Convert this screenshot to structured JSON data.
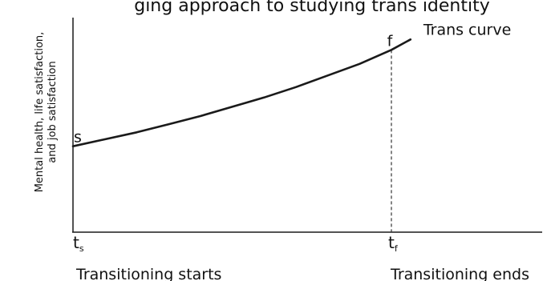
{
  "chart_data": {
    "type": "line",
    "title": "ging approach to studying trans identity",
    "xlabel": "",
    "ylabel": "Mental health, life satisfaction, and job satisfaction",
    "ylabel_lines": [
      "Mental health, life satisfaction,",
      "and job satisfaction"
    ],
    "grid": false,
    "legend": "none",
    "series": [
      {
        "name": "Trans curve",
        "x": [
          0,
          0.1,
          0.2,
          0.3,
          0.4,
          0.5,
          0.6,
          0.7,
          0.8,
          0.9,
          1.0,
          1.06
        ],
        "values": [
          0.37,
          0.4,
          0.43,
          0.465,
          0.5,
          0.54,
          0.58,
          0.625,
          0.675,
          0.725,
          0.785,
          0.83
        ]
      }
    ],
    "points": [
      {
        "label": "s",
        "x": 0,
        "y": 0.37
      },
      {
        "label": "f",
        "x": 1.0,
        "y": 0.785
      }
    ],
    "x_ticks": [
      {
        "main": "t",
        "sub": "s",
        "x": 0
      },
      {
        "main": "t",
        "sub": "f",
        "x": 1.0
      }
    ],
    "x_captions": [
      {
        "text": "Transitioning starts",
        "x": 0
      },
      {
        "text": "Transitioning ends",
        "x": 1.0
      }
    ],
    "colors": {
      "line": "#1a1a1a",
      "axis": "#1a1a1a",
      "dash": "#333333"
    }
  }
}
